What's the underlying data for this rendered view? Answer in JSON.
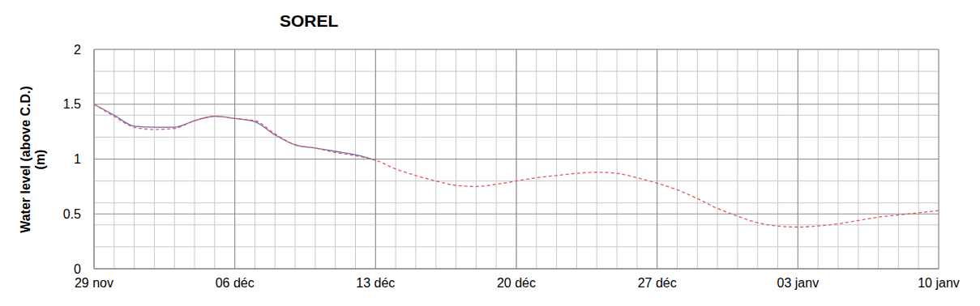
{
  "chart_data": {
    "type": "line",
    "title": "SOREL",
    "y_label": "Water level (above C.D.) (m)",
    "categories": [
      "29 nov",
      null,
      null,
      null,
      null,
      null,
      null,
      "06 déc",
      null,
      null,
      null,
      null,
      null,
      null,
      "13 déc",
      null,
      null,
      null,
      null,
      null,
      null,
      "20 déc",
      null,
      null,
      null,
      null,
      null,
      null,
      "27 déc",
      null,
      null,
      null,
      null,
      null,
      null,
      "03 janv",
      null,
      null,
      null,
      null,
      null,
      null,
      "10 janv"
    ],
    "series": [
      {
        "color": "#6b6bbd",
        "line_style": "solid",
        "values": [
          1.5,
          1.4,
          1.3,
          1.29,
          1.29,
          1.35,
          1.39,
          1.37,
          1.34,
          1.22,
          1.13,
          1.1,
          1.07,
          1.04,
          0.99,
          null,
          null,
          null,
          null,
          null,
          null,
          null,
          null,
          null,
          null,
          null,
          null,
          null,
          null,
          null,
          null,
          null,
          null,
          null,
          null,
          null,
          null,
          null,
          null,
          null,
          null,
          null,
          null
        ]
      },
      {
        "color": "#e05a5a",
        "line_style": "dashed",
        "values": [
          1.5,
          1.39,
          1.29,
          1.27,
          1.28,
          1.35,
          1.39,
          1.37,
          1.35,
          1.23,
          1.13,
          1.1,
          1.06,
          1.03,
          0.99,
          0.91,
          0.85,
          0.8,
          0.76,
          0.75,
          0.77,
          0.8,
          0.83,
          0.85,
          0.87,
          0.88,
          0.87,
          0.83,
          0.78,
          0.72,
          0.64,
          0.55,
          0.48,
          0.42,
          0.39,
          0.38,
          0.39,
          0.41,
          0.44,
          0.47,
          0.49,
          0.51,
          0.53
        ]
      }
    ],
    "ylim": [
      0,
      2
    ],
    "yticks": [
      0,
      0.5,
      1,
      1.5,
      2
    ],
    "grid": true
  }
}
